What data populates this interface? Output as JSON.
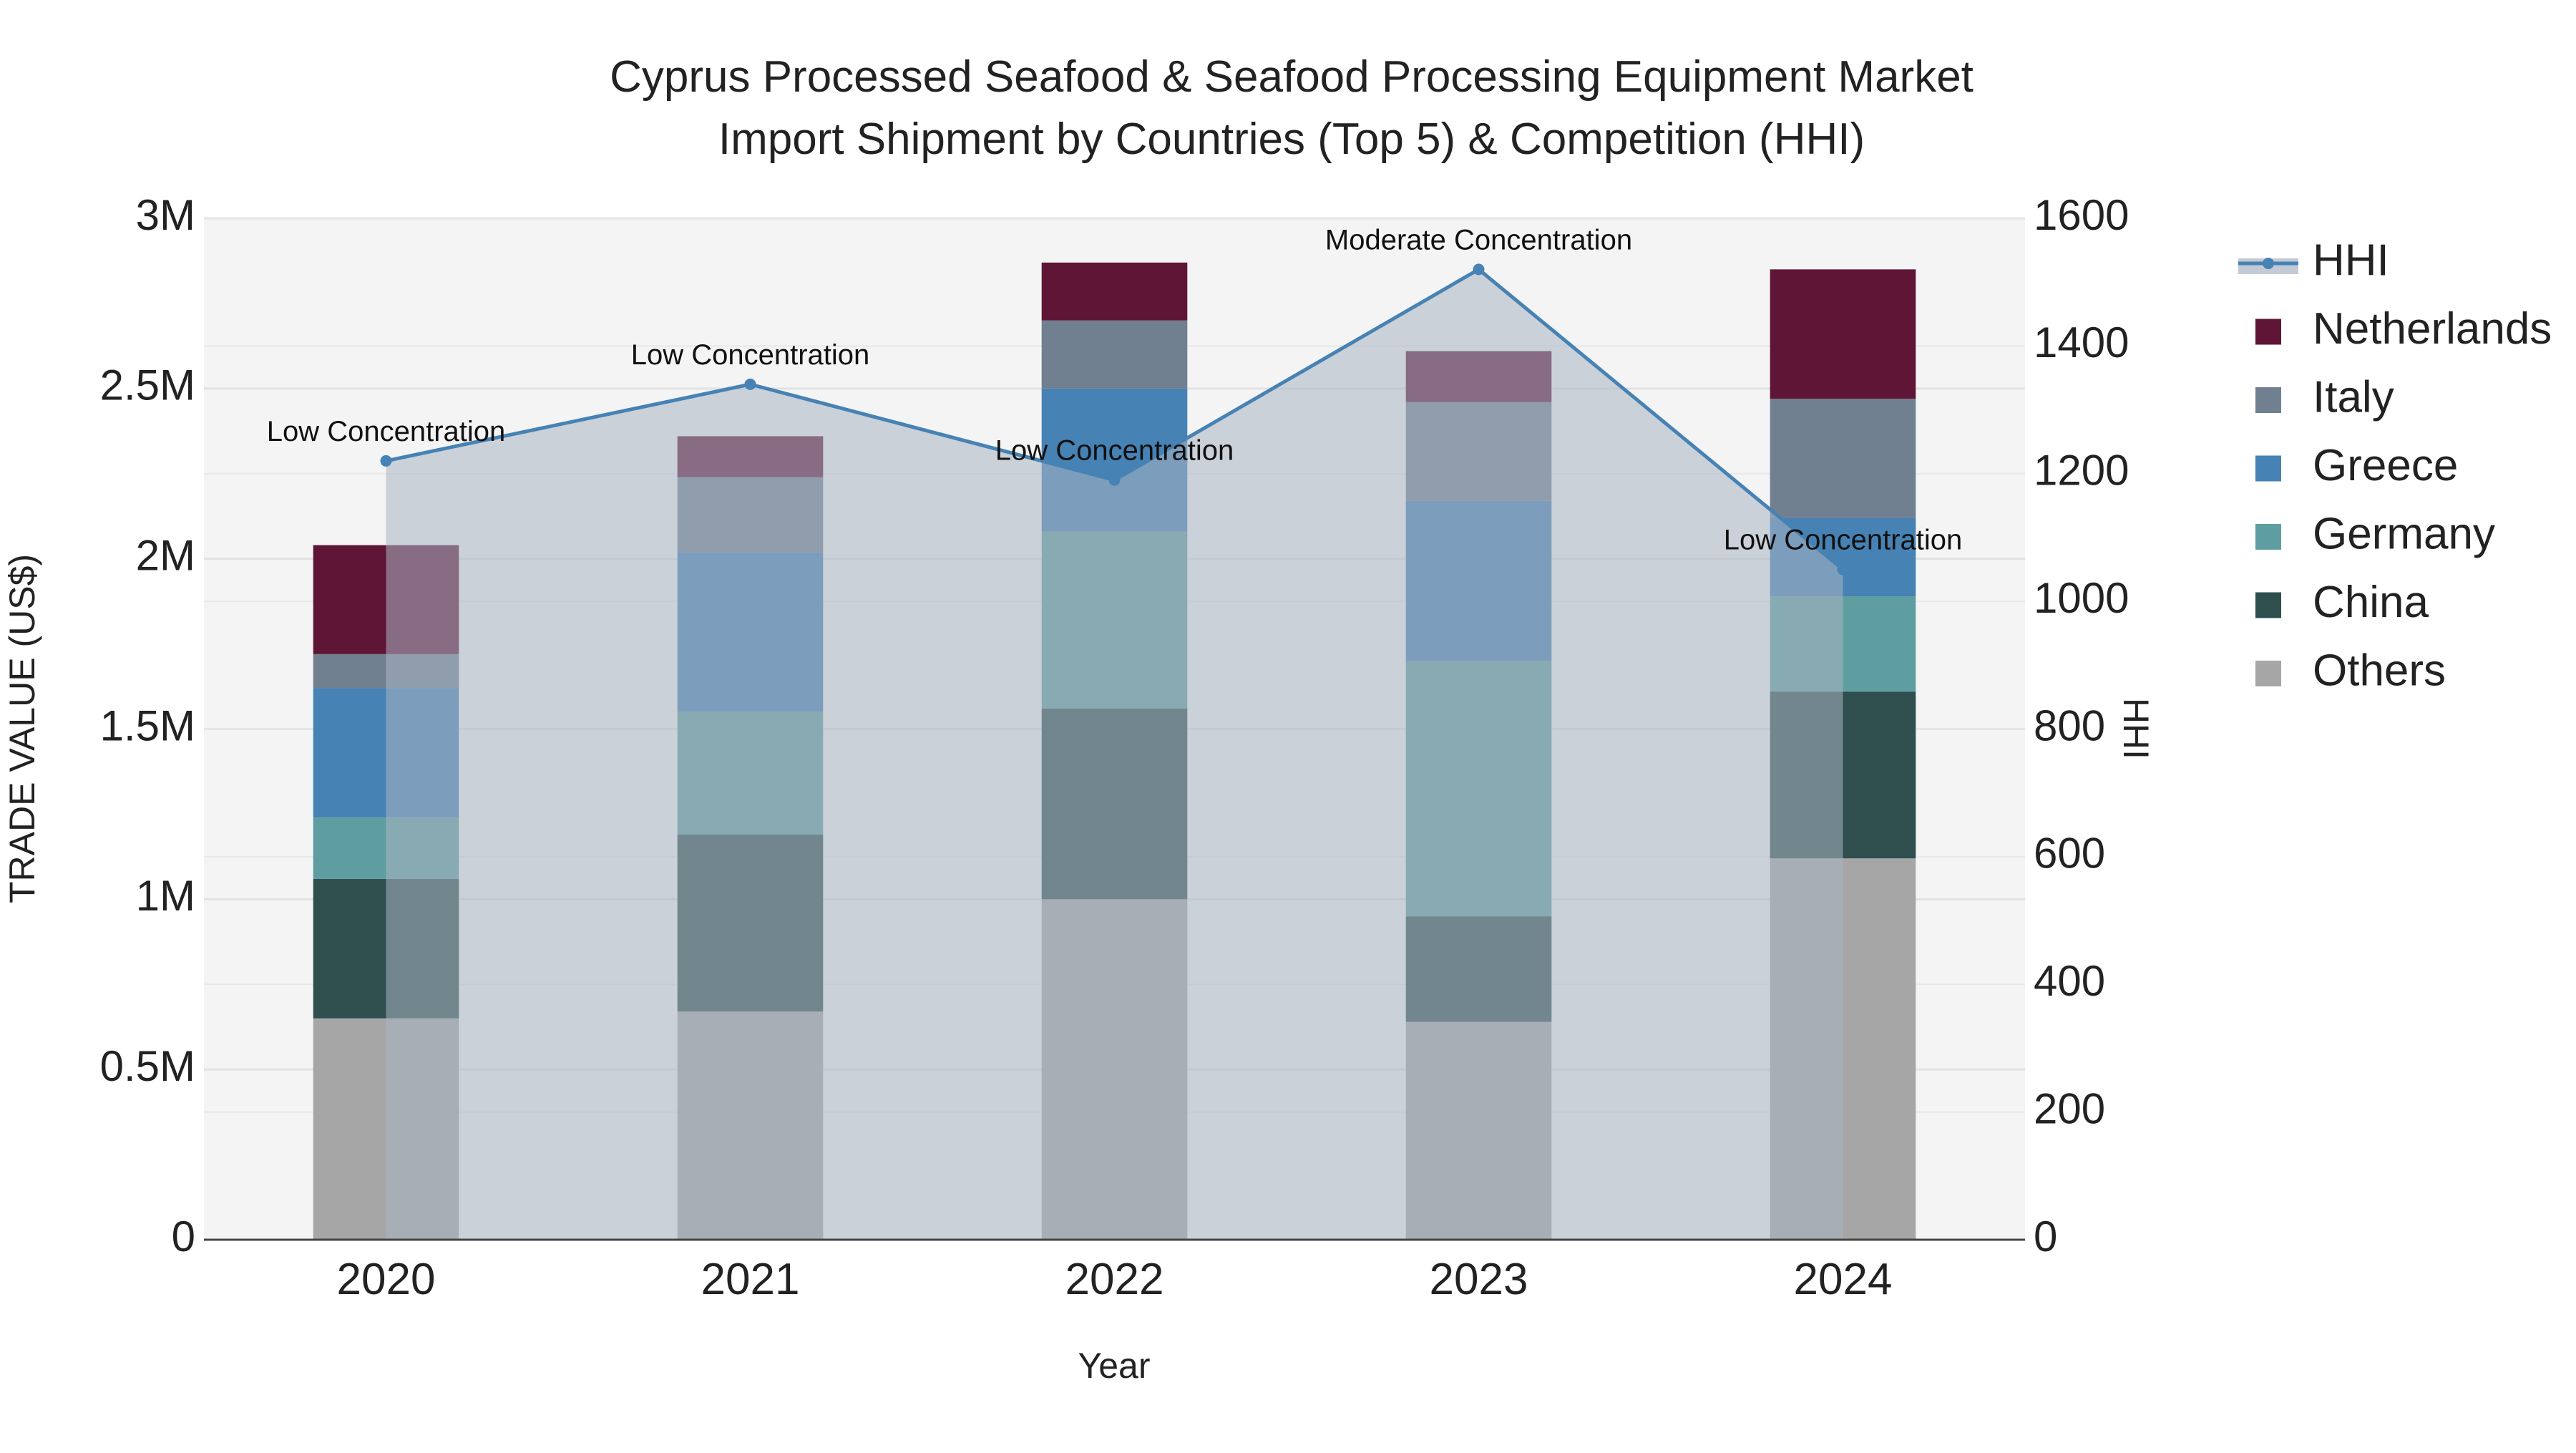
{
  "chart_data": {
    "type": "bar",
    "title_lines": [
      "Cyprus Processed Seafood & Seafood Processing Equipment Market",
      "Import Shipment by Countries (Top 5) & Competition (HHI)"
    ],
    "xlabel": "Year",
    "ylabel": "TRADE VALUE (US$)",
    "y2label": "HHI",
    "categories": [
      "2020",
      "2021",
      "2022",
      "2023",
      "2024"
    ],
    "ylim": [
      0,
      3000000
    ],
    "y2lim": [
      0,
      1600
    ],
    "y_tick_values": [
      0,
      500000,
      1000000,
      1500000,
      2000000,
      2500000,
      3000000
    ],
    "y_tick_labels": [
      "0",
      "0.5M",
      "1M",
      "1.5M",
      "2M",
      "2.5M",
      "3M"
    ],
    "y2_tick_values": [
      0,
      200,
      400,
      600,
      800,
      1000,
      1200,
      1400,
      1600
    ],
    "y2_tick_labels": [
      "0",
      "200",
      "400",
      "600",
      "800",
      "1000",
      "1200",
      "1400",
      "1600"
    ],
    "series": [
      {
        "name": "Others",
        "color": "#a6a6a6",
        "values": [
          650000,
          670000,
          1000000,
          640000,
          1120000
        ]
      },
      {
        "name": "China",
        "color": "#2f4f4f",
        "values": [
          410000,
          520000,
          560000,
          310000,
          490000
        ]
      },
      {
        "name": "Germany",
        "color": "#5f9ea0",
        "values": [
          180000,
          360000,
          520000,
          750000,
          280000
        ]
      },
      {
        "name": "Greece",
        "color": "#4682b4",
        "values": [
          380000,
          470000,
          420000,
          470000,
          230000
        ]
      },
      {
        "name": "Italy",
        "color": "#708090",
        "values": [
          100000,
          220000,
          200000,
          290000,
          350000
        ]
      },
      {
        "name": "Netherlands",
        "color": "#5f1535",
        "values": [
          320000,
          120000,
          170000,
          150000,
          380000
        ]
      }
    ],
    "hhi": {
      "name": "HHI",
      "color": "#4682b4",
      "fill_color": "#aab4c3",
      "values": [
        1220,
        1340,
        1190,
        1520,
        1050
      ],
      "labels": [
        "Low Concentration",
        "Low Concentration",
        "Low Concentration",
        "Moderate Concentration",
        "Low Concentration"
      ]
    },
    "legend_order": [
      "HHI",
      "Netherlands",
      "Italy",
      "Greece",
      "Germany",
      "China",
      "Others"
    ],
    "legend_position": "right",
    "grid": true
  }
}
